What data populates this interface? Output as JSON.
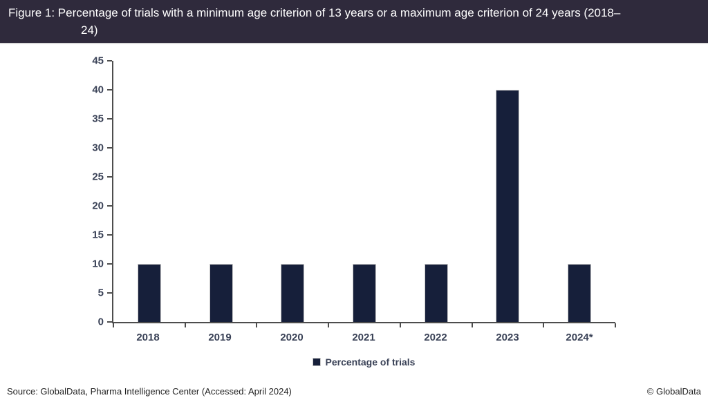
{
  "title": {
    "line1": "Figure 1: Percentage of trials with a minimum age criterion of 13 years or a maximum age criterion of 24 years (2018–",
    "line2": "24)"
  },
  "chart_data": {
    "type": "bar",
    "title": "Figure 1: Percentage of trials with a minimum age criterion of 13 years or a maximum age criterion of 24 years (2018–24)",
    "categories": [
      "2018",
      "2019",
      "2020",
      "2021",
      "2022",
      "2023",
      "2024*"
    ],
    "values": [
      10,
      10,
      10,
      10,
      10,
      40,
      10
    ],
    "xlabel": "",
    "ylabel": "",
    "ylim": [
      0,
      45
    ],
    "ytick_step": 5,
    "grid": false,
    "legend": [
      "Percentage of trials"
    ],
    "legend_position": "bottom"
  },
  "colors": {
    "title_bg": "#2f2a3c",
    "bar": "#161f3a",
    "bar_border": "#c9c9c9",
    "axis": "#4d4d4d",
    "tick_label": "#3a4257"
  },
  "footer": {
    "source": "Source: GlobalData, Pharma Intelligence Center (Accessed: April 2024)",
    "copyright": "© GlobalData"
  }
}
